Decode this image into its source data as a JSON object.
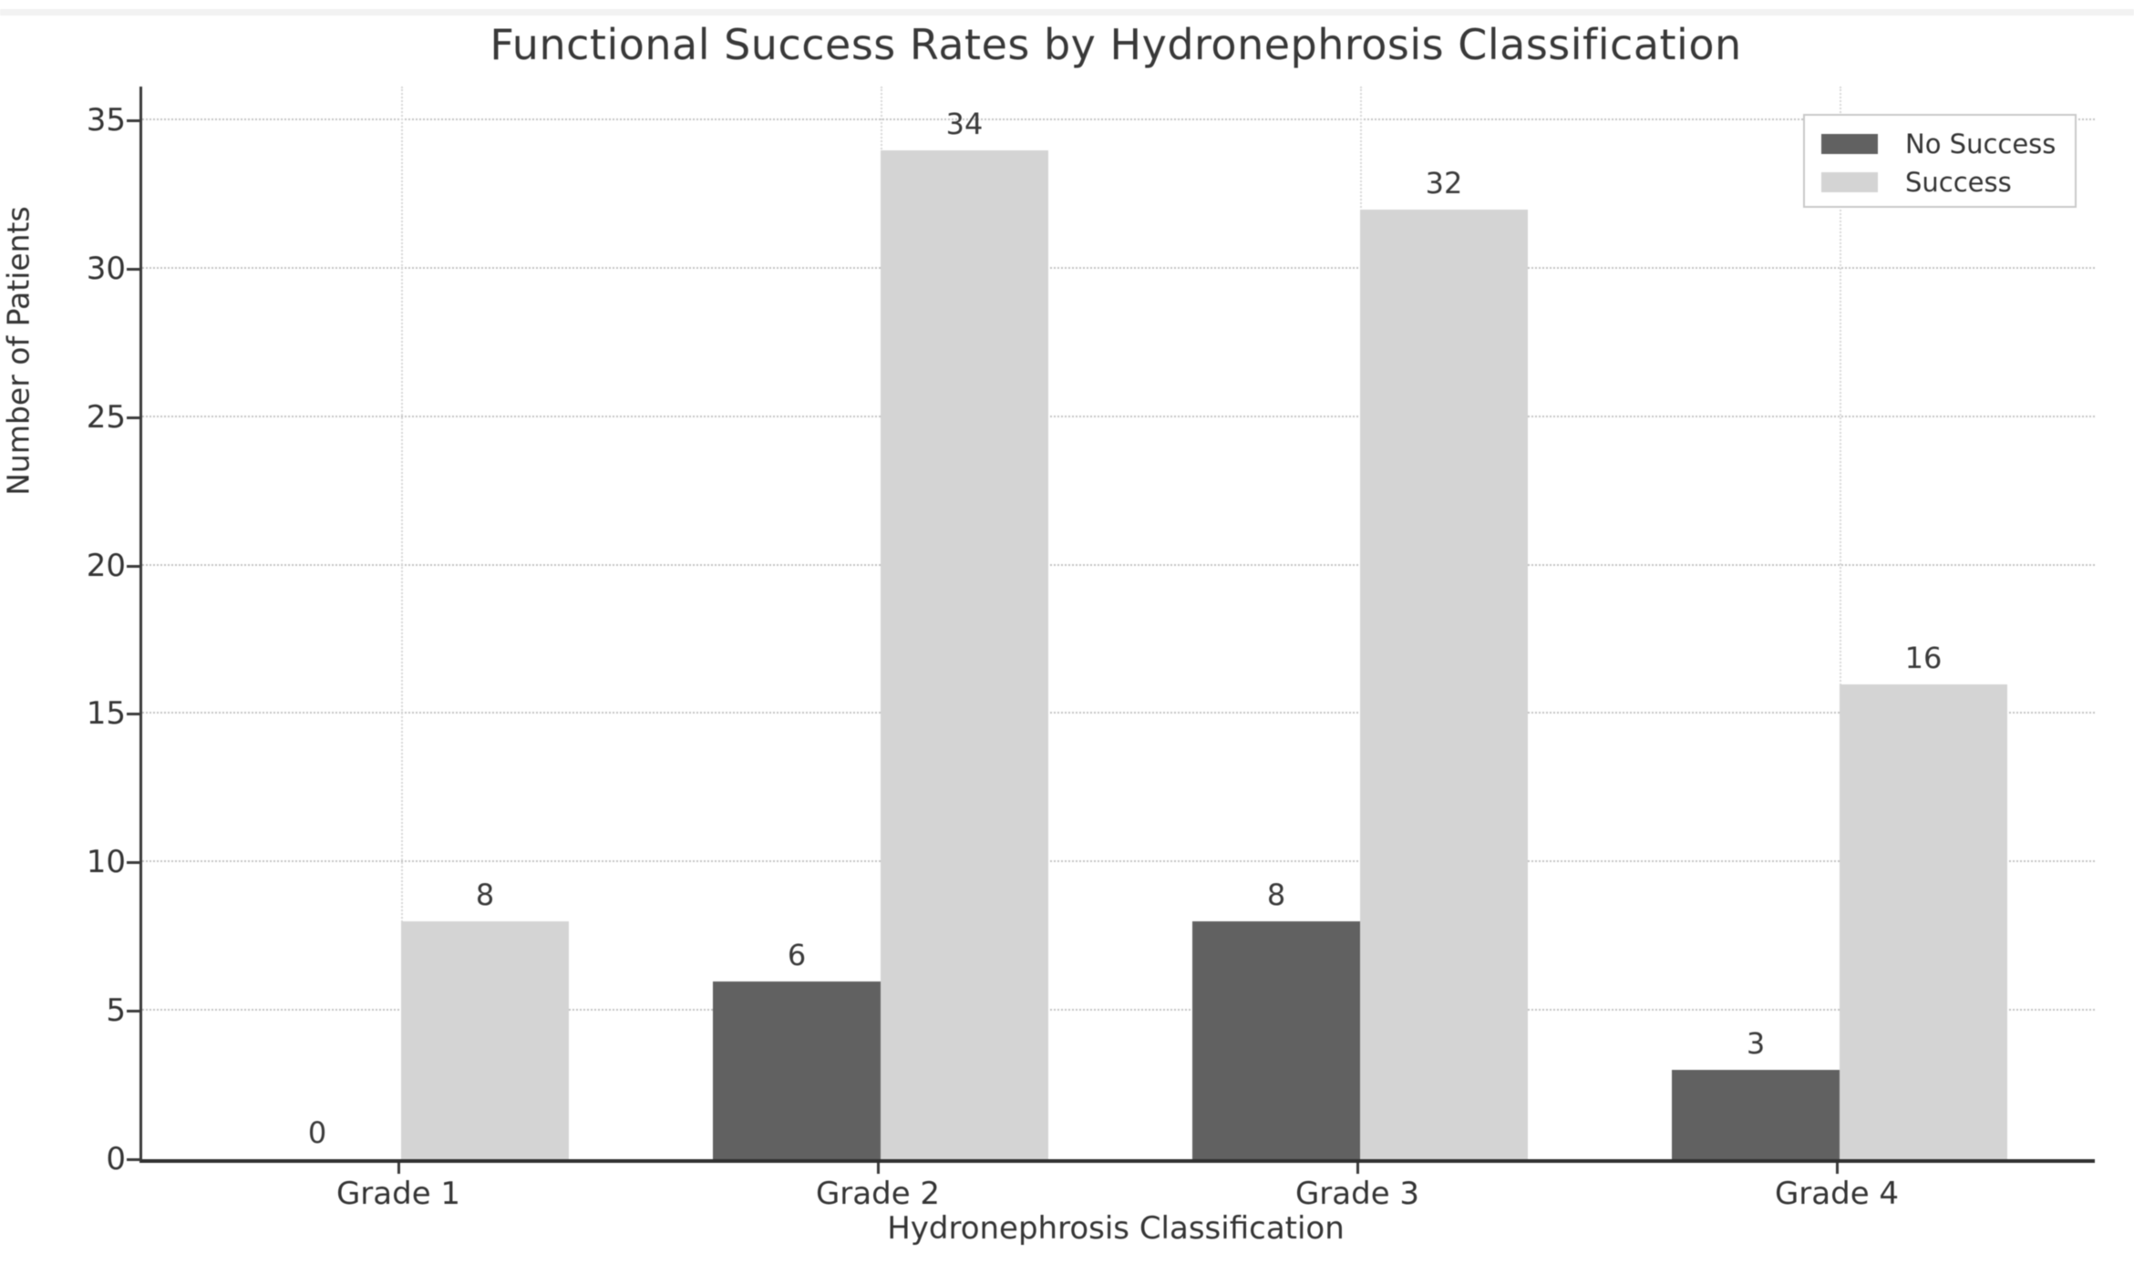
{
  "chart_data": {
    "type": "bar",
    "title": "Functional Success Rates by Hydronephrosis Classification",
    "xlabel": "Hydronephrosis Classification",
    "ylabel": "Number of Patients",
    "categories": [
      "Grade 1",
      "Grade 2",
      "Grade 3",
      "Grade 4"
    ],
    "series": [
      {
        "name": "No Success",
        "color": "#616161",
        "values": [
          0,
          6,
          8,
          3
        ]
      },
      {
        "name": "Success",
        "color": "#d4d4d4",
        "values": [
          8,
          34,
          32,
          16
        ]
      }
    ],
    "ylim": [
      0,
      35
    ],
    "yticks": [
      0,
      5,
      10,
      15,
      20,
      25,
      30,
      35
    ],
    "grid": "dotted horizontal lines at y ticks, faint dotted vertical lines at category ticks",
    "legend_position": "upper right",
    "bar_value_labels": true
  }
}
